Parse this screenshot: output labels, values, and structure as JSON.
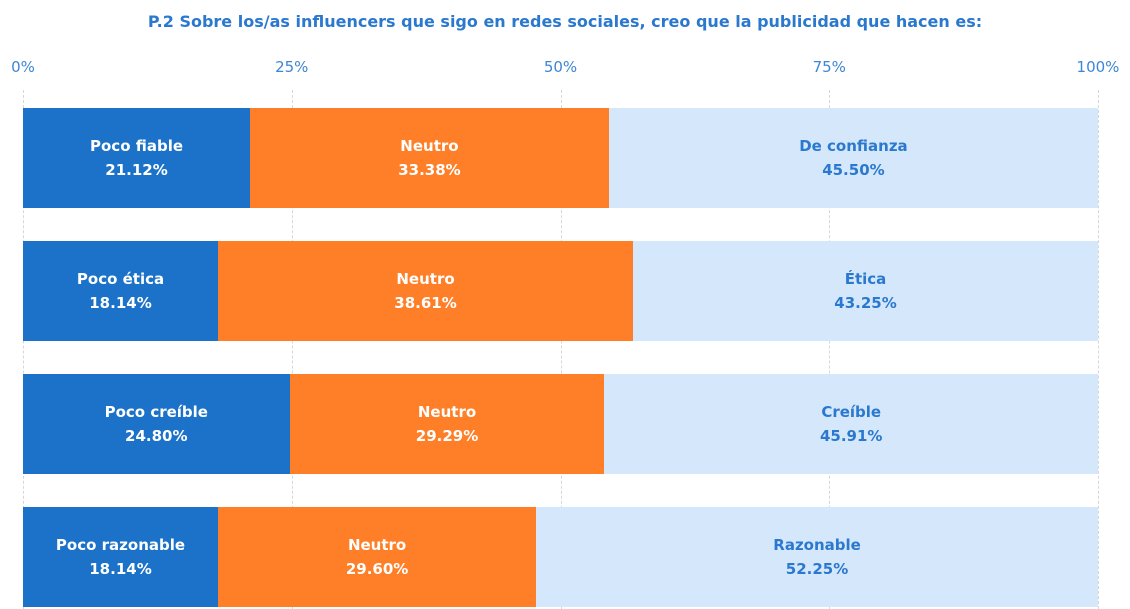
{
  "chart_data": {
    "type": "bar",
    "orientation": "horizontal",
    "stacked": true,
    "title": "P.2 Sobre los/as influencers que sigo en redes sociales, creo que la publicidad que hacen es:",
    "xlim": [
      0,
      100
    ],
    "xticks": [
      {
        "value": 0,
        "label": "0%"
      },
      {
        "value": 25,
        "label": "25%"
      },
      {
        "value": 50,
        "label": "50%"
      },
      {
        "value": 75,
        "label": "75%"
      },
      {
        "value": 100,
        "label": "100%"
      }
    ],
    "grid": true,
    "series": [
      {
        "color": "#1b72c8",
        "label_color": "#ffffff",
        "segment_labels": [
          "Poco fiable",
          "Poco ética",
          "Poco creíble",
          "Poco razonable"
        ],
        "values": [
          21.12,
          18.14,
          24.8,
          18.14
        ],
        "value_labels": [
          "21.12%",
          "18.14%",
          "24.80%",
          "18.14%"
        ]
      },
      {
        "color": "#fe7f27",
        "label_color": "#ffffff",
        "segment_labels": [
          "Neutro",
          "Neutro",
          "Neutro",
          "Neutro"
        ],
        "values": [
          33.38,
          38.61,
          29.29,
          29.6
        ],
        "value_labels": [
          "33.38%",
          "38.61%",
          "29.29%",
          "29.60%"
        ]
      },
      {
        "color": "#d5e7fb",
        "label_color": "#2a79cf",
        "segment_labels": [
          "De confianza",
          "Ética",
          "Creíble",
          "Razonable"
        ],
        "values": [
          45.5,
          43.25,
          45.91,
          52.25
        ],
        "value_labels": [
          "45.50%",
          "43.25%",
          "45.91%",
          "52.25%"
        ]
      }
    ]
  }
}
